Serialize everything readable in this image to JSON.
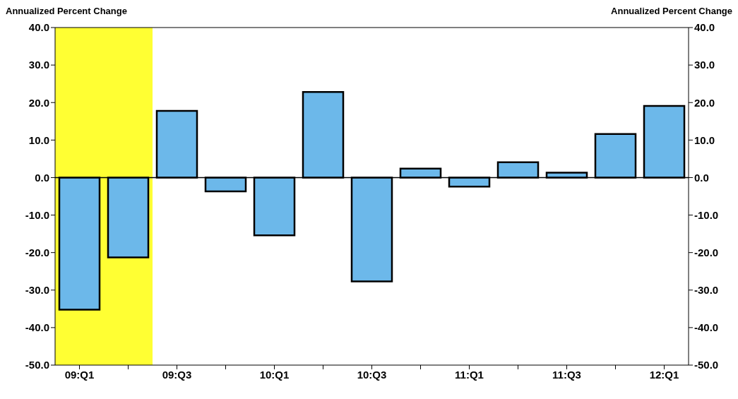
{
  "chart_data": {
    "type": "bar",
    "ylabel": "Annualized Percent Change",
    "y2label": "Annualized Percent Change",
    "categories": [
      "09:Q1",
      null,
      "09:Q3",
      null,
      "10:Q1",
      null,
      "10:Q3",
      null,
      "11:Q1",
      null,
      "11:Q3",
      null,
      "12:Q1"
    ],
    "values": [
      -35.2,
      -21.3,
      17.8,
      -3.7,
      -15.4,
      22.8,
      -27.7,
      2.4,
      -2.4,
      4.1,
      1.3,
      11.6,
      19.1
    ],
    "color": "#6cb8ea",
    "ylim": [
      -50,
      40
    ],
    "yticks": [
      {
        "value": -50,
        "label": "-50.0"
      },
      {
        "value": -40,
        "label": "-40.0"
      },
      {
        "value": -30,
        "label": "-30.0"
      },
      {
        "value": -20,
        "label": "-20.0"
      },
      {
        "value": -10,
        "label": "-10.0"
      },
      {
        "value": 0,
        "label": "0.0"
      },
      {
        "value": 10,
        "label": "10.0"
      },
      {
        "value": 20,
        "label": "20.0"
      },
      {
        "value": 30,
        "label": "30.0"
      },
      {
        "value": 40,
        "label": "40.0"
      }
    ],
    "y2lim": [
      -50,
      40
    ],
    "y2ticks": [
      {
        "value": -50,
        "label": "-50.0"
      },
      {
        "value": -40,
        "label": "-40.0"
      },
      {
        "value": -30,
        "label": "-30.0"
      },
      {
        "value": -20,
        "label": "-20.0"
      },
      {
        "value": -10,
        "label": "-10.0"
      },
      {
        "value": 0,
        "label": "0.0"
      },
      {
        "value": 10,
        "label": "10.0"
      },
      {
        "value": 20,
        "label": "20.0"
      },
      {
        "value": 30,
        "label": "30.0"
      },
      {
        "value": 40,
        "label": "40.0"
      }
    ],
    "ref_lines": [
      {
        "axis": "y",
        "value": 0,
        "color": "#000000"
      }
    ],
    "bands": [
      {
        "axis": "x",
        "from": "09:Q1",
        "to": "09:Q3",
        "color": "#ffff33"
      }
    ],
    "grid": false
  }
}
